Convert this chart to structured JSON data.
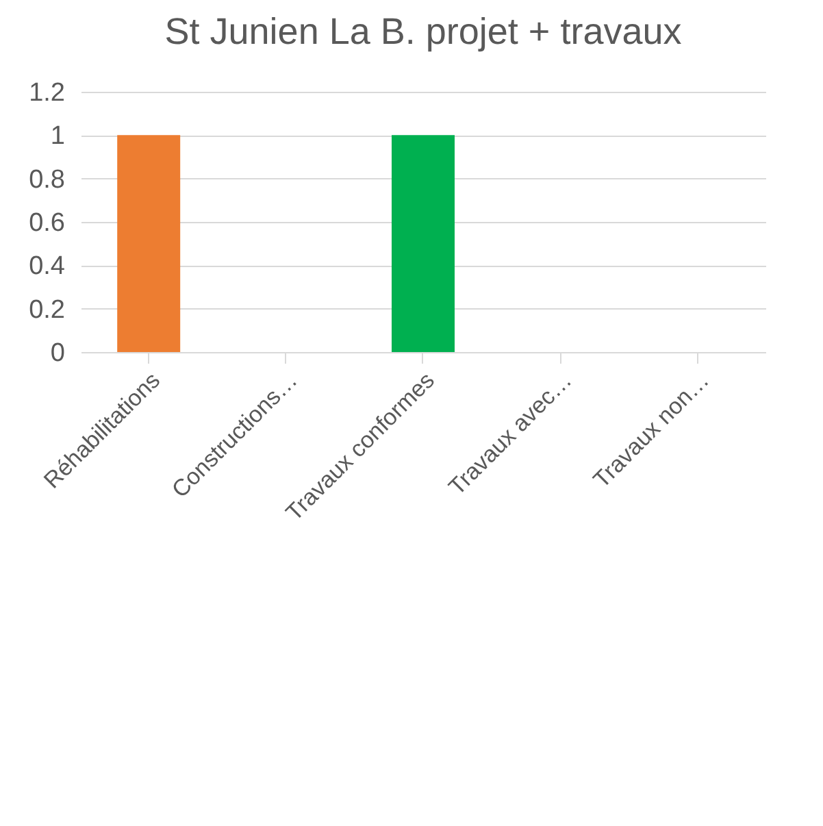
{
  "chart_data": {
    "type": "bar",
    "title": "St Junien La B. projet + travaux",
    "categories": [
      "Réhabilitations",
      "Constructions…",
      "Travaux conformes",
      "Travaux avec…",
      "Travaux non…"
    ],
    "values": [
      1,
      0,
      1,
      0,
      0
    ],
    "colors": [
      "#ed7d31",
      "#a5a5a5",
      "#00b050",
      "#ffc000",
      "#5b9bd5"
    ],
    "ylim": [
      0,
      1.2
    ],
    "yticks": [
      0,
      0.2,
      0.4,
      0.6,
      0.8,
      1,
      1.2
    ],
    "grid": "y",
    "legend": false
  }
}
